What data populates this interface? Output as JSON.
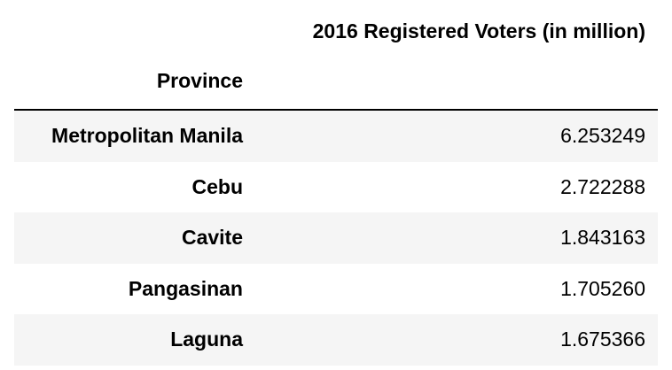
{
  "chart_data": {
    "type": "table",
    "column_header": "2016 Registered Voters (in million)",
    "index_name": "Province",
    "categories": [
      "Metropolitan Manila",
      "Cebu",
      "Cavite",
      "Pangasinan",
      "Laguna"
    ],
    "values": [
      "6.253249",
      "2.722288",
      "1.843163",
      "1.705260",
      "1.675366"
    ],
    "row_stripe_color": "#f5f5f5"
  }
}
